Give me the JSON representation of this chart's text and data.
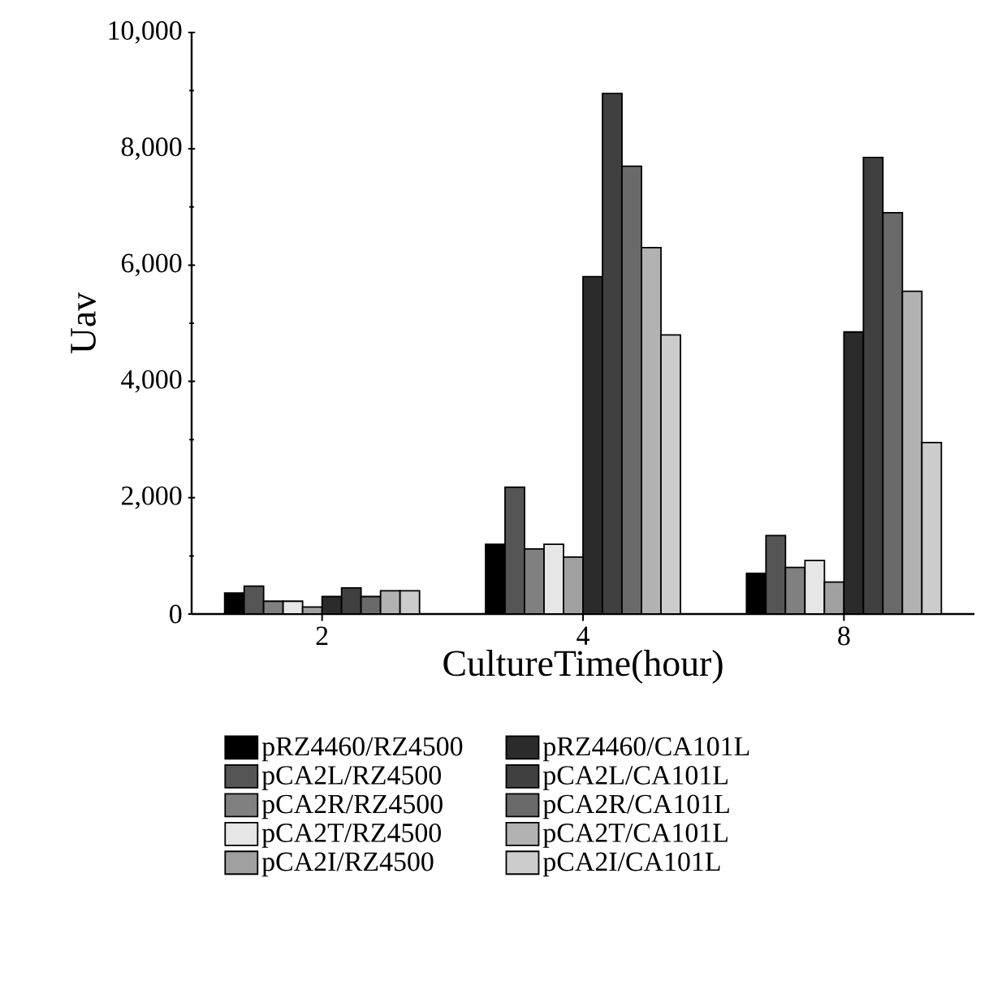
{
  "chart_data": {
    "type": "bar",
    "xlabel": "CultureTime(hour)",
    "ylabel": "Uav",
    "categories": [
      "2",
      "4",
      "8"
    ],
    "ylim": [
      0,
      10000
    ],
    "yticks": [
      0,
      {
        "value": 2000,
        "label": "2,000"
      },
      {
        "value": 4000,
        "label": "4,000"
      },
      {
        "value": 6000,
        "label": "6,000"
      },
      {
        "value": 8000,
        "label": "8,000"
      },
      {
        "value": 10000,
        "label": "10,000"
      }
    ],
    "legend": "bottom",
    "grid": false,
    "series": [
      {
        "name": "pRZ4460/RZ4500",
        "color": "#000000",
        "values": [
          360,
          1200,
          700
        ]
      },
      {
        "name": "pCA2L/RZ4500",
        "color": "#555555",
        "values": [
          480,
          2180,
          1350
        ]
      },
      {
        "name": "pCA2R/RZ4500",
        "color": "#808080",
        "values": [
          220,
          1120,
          800
        ]
      },
      {
        "name": "pCA2T/RZ4500",
        "color": "#e6e6e6",
        "values": [
          220,
          1200,
          920
        ]
      },
      {
        "name": "pCA2I/RZ4500",
        "color": "#a0a0a0",
        "values": [
          120,
          980,
          550
        ]
      },
      {
        "name": "pRZ4460/CA101L",
        "color": "#2b2b2b",
        "values": [
          300,
          5800,
          4850
        ]
      },
      {
        "name": "pCA2L/CA101L",
        "color": "#404040",
        "values": [
          450,
          8950,
          7850
        ]
      },
      {
        "name": "pCA2R/CA101L",
        "color": "#6a6a6a",
        "values": [
          300,
          7700,
          6900
        ]
      },
      {
        "name": "pCA2T/CA101L",
        "color": "#b2b2b2",
        "values": [
          400,
          6300,
          5550
        ]
      },
      {
        "name": "pCA2I/CA101L",
        "color": "#cccccc",
        "values": [
          400,
          4800,
          2950
        ]
      }
    ]
  }
}
